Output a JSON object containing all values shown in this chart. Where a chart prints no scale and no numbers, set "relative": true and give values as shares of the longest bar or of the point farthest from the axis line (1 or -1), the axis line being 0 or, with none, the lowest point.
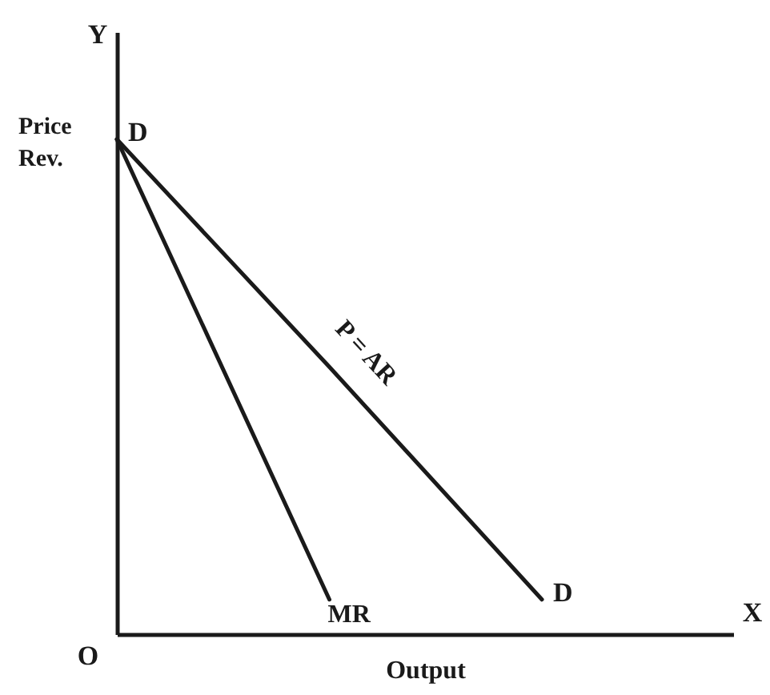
{
  "chart_data": {
    "type": "line",
    "relative": true,
    "categories": [
      null,
      null,
      null
    ],
    "series": [
      {
        "name": "P = AR",
        "color": "#1a1a1a",
        "values": [
          1,
          0.54,
          0.07
        ]
      },
      {
        "name": "MR",
        "color": "#1a1a1a",
        "values": [
          1,
          0.07,
          null
        ]
      }
    ],
    "xlabel": "Output",
    "ylabel": "Price Rev.",
    "annotations": [
      "Y",
      "O",
      "X",
      "D",
      "D"
    ],
    "legend": false,
    "grid": false,
    "marker": "none",
    "line_style": "solid",
    "tick_labels": false
  }
}
